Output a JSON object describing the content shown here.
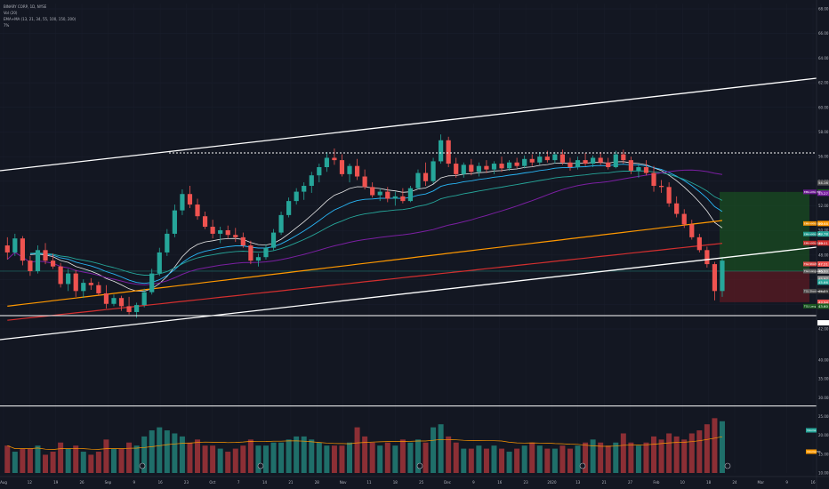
{
  "header": {
    "symbol_line": "BINARY CORP, 1D, NYSE",
    "vol_line": "Vol (20)",
    "ema_line": "EMA+MA (13, 21, 34, 55, 100, 150, 200)",
    "pct_line": "7%"
  },
  "colors": {
    "background": "#131722",
    "bull": "#26a69a",
    "bear": "#ef5350",
    "vol_bull": "#1f6f6a",
    "vol_bear": "#8c2f35",
    "ema13": "#e8e8e8",
    "ema21": "#29b6f6",
    "ema34": "#26a69a",
    "ma55": "#7b1fa2",
    "ma100": "#ff9800",
    "ma150": "#d32f2f",
    "trend": "#ffffff",
    "target_zone": "#1b5e20",
    "stop_zone": "#6d1b23"
  },
  "chart_data": {
    "type": "candlestick",
    "series_names": [
      "Price",
      "Volume"
    ],
    "x_axis": {
      "labels": [
        "Aug",
        "12",
        "19",
        "26",
        "Sep",
        "9",
        "16",
        "23",
        "Oct",
        "7",
        "14",
        "21",
        "28",
        "Nov",
        "11",
        "18",
        "25",
        "Dec",
        "9",
        "16",
        "23",
        "2020",
        "13",
        "21",
        "27",
        "Feb",
        "10",
        "18",
        "24",
        "Mar",
        "9",
        "16"
      ]
    },
    "price_axis": {
      "labels": [
        "68.00",
        "66.00",
        "64.00",
        "62.00",
        "60.00",
        "58.00",
        "56.00",
        "54.00",
        "52.00",
        "50.00",
        "48.00",
        "46.00",
        "44.00",
        "42.00"
      ],
      "ylim": [
        41.5,
        69.5
      ],
      "markers": [
        {
          "value": 54.16,
          "label": "54.16",
          "color": "#555"
        },
        {
          "value": 53.38,
          "label": "53.38",
          "color": "#1b5e20"
        },
        {
          "value": 53.27,
          "label": "53.27",
          "color": "#7b1fa2"
        },
        {
          "value": 50.68,
          "label": "50.68",
          "color": "#ff9800"
        },
        {
          "value": 49.78,
          "label": "49.78",
          "color": "#26a69a"
        },
        {
          "value": 49.01,
          "label": "49.01",
          "color": "#d32f2f"
        },
        {
          "value": 47.21,
          "label": "47.21",
          "color": "#ef5350"
        },
        {
          "value": 46.6,
          "label": "46.60",
          "color": "#888"
        },
        {
          "value": 45.97,
          "label": "45.97",
          "color": "#888"
        },
        {
          "value": 45.66,
          "label": "45.66",
          "color": "#26a69a"
        },
        {
          "value": 44.89,
          "label": "44.89",
          "color": "#333"
        },
        {
          "value": 43.94,
          "label": "43.94",
          "color": "#ef5350"
        },
        {
          "value": 43.6,
          "label": "43.60",
          "color": "#1b5e20"
        },
        {
          "value": 42.18,
          "label": "42.18",
          "color": "#ffffff"
        }
      ],
      "ma_tags": [
        {
          "value": 53.38,
          "label": "EMA+MA (55)",
          "color": "#7b1fa2"
        },
        {
          "value": 50.68,
          "label": "EMA+MA (100)",
          "color": "#ff9800"
        },
        {
          "value": 49.78,
          "label": "EMA+MA (34)",
          "color": "#26a69a"
        },
        {
          "value": 49.01,
          "label": "EMA+MA (150)",
          "color": "#d32f2f"
        },
        {
          "value": 47.21,
          "label": "TGL Short",
          "color": "#ef5350"
        },
        {
          "value": 46.6,
          "label": "TGL Long entry",
          "color": "#666"
        },
        {
          "value": 44.89,
          "label": "TGL Short entry",
          "color": "#555"
        },
        {
          "value": 43.6,
          "label": "TGL Long",
          "color": "#1b5e20"
        }
      ]
    },
    "volume_axis": {
      "labels": [
        "40.00M",
        "35.00M",
        "30.00M",
        "25.00M",
        "20.00M",
        "15.00M",
        "10.00M"
      ],
      "tags": [
        {
          "label": "Volume",
          "color": "#26a69a"
        },
        {
          "label": "Volume MA",
          "color": "#ff9800"
        }
      ]
    },
    "candles": [
      {
        "o": 48.8,
        "h": 49.5,
        "l": 47.6,
        "c": 48.2,
        "v": 9
      },
      {
        "o": 48.2,
        "h": 49.8,
        "l": 47.9,
        "c": 49.4,
        "v": 7
      },
      {
        "o": 49.4,
        "h": 49.6,
        "l": 47.1,
        "c": 47.5,
        "v": 8
      },
      {
        "o": 47.5,
        "h": 47.9,
        "l": 46.2,
        "c": 46.6,
        "v": 8
      },
      {
        "o": 46.6,
        "h": 48.8,
        "l": 46.4,
        "c": 48.4,
        "v": 9
      },
      {
        "o": 48.4,
        "h": 49.0,
        "l": 47.2,
        "c": 47.5,
        "v": 6
      },
      {
        "o": 47.5,
        "h": 48.1,
        "l": 46.8,
        "c": 47.0,
        "v": 7
      },
      {
        "o": 47.0,
        "h": 47.3,
        "l": 45.2,
        "c": 45.5,
        "v": 10
      },
      {
        "o": 45.5,
        "h": 46.8,
        "l": 44.9,
        "c": 46.4,
        "v": 8
      },
      {
        "o": 46.4,
        "h": 46.7,
        "l": 44.4,
        "c": 44.9,
        "v": 9
      },
      {
        "o": 44.9,
        "h": 45.9,
        "l": 44.3,
        "c": 45.6,
        "v": 7
      },
      {
        "o": 45.6,
        "h": 46.0,
        "l": 45.0,
        "c": 45.4,
        "v": 6
      },
      {
        "o": 45.4,
        "h": 45.7,
        "l": 44.5,
        "c": 44.7,
        "v": 7
      },
      {
        "o": 44.7,
        "h": 45.4,
        "l": 43.4,
        "c": 43.8,
        "v": 11
      },
      {
        "o": 43.8,
        "h": 44.6,
        "l": 43.6,
        "c": 44.3,
        "v": 8
      },
      {
        "o": 44.3,
        "h": 44.5,
        "l": 43.2,
        "c": 43.6,
        "v": 8
      },
      {
        "o": 43.6,
        "h": 44.4,
        "l": 42.9,
        "c": 43.1,
        "v": 10
      },
      {
        "o": 43.1,
        "h": 43.9,
        "l": 42.6,
        "c": 43.7,
        "v": 9
      },
      {
        "o": 43.7,
        "h": 45.1,
        "l": 43.5,
        "c": 44.8,
        "v": 12
      },
      {
        "o": 44.8,
        "h": 46.8,
        "l": 44.6,
        "c": 46.4,
        "v": 14
      },
      {
        "o": 46.4,
        "h": 48.6,
        "l": 46.2,
        "c": 48.2,
        "v": 15
      },
      {
        "o": 48.2,
        "h": 50.2,
        "l": 47.9,
        "c": 49.8,
        "v": 14
      },
      {
        "o": 49.8,
        "h": 52.3,
        "l": 49.5,
        "c": 51.8,
        "v": 13
      },
      {
        "o": 51.8,
        "h": 53.6,
        "l": 51.4,
        "c": 53.2,
        "v": 12
      },
      {
        "o": 53.2,
        "h": 53.9,
        "l": 52.0,
        "c": 52.3,
        "v": 10
      },
      {
        "o": 52.3,
        "h": 52.8,
        "l": 51.0,
        "c": 51.3,
        "v": 11
      },
      {
        "o": 51.3,
        "h": 51.7,
        "l": 50.2,
        "c": 50.4,
        "v": 9
      },
      {
        "o": 50.4,
        "h": 51.0,
        "l": 49.4,
        "c": 49.8,
        "v": 9
      },
      {
        "o": 49.8,
        "h": 50.4,
        "l": 49.0,
        "c": 50.1,
        "v": 8
      },
      {
        "o": 50.1,
        "h": 50.5,
        "l": 49.4,
        "c": 49.7,
        "v": 7
      },
      {
        "o": 49.7,
        "h": 50.3,
        "l": 49.1,
        "c": 49.5,
        "v": 8
      },
      {
        "o": 49.5,
        "h": 49.9,
        "l": 48.6,
        "c": 48.8,
        "v": 9
      },
      {
        "o": 48.8,
        "h": 49.2,
        "l": 47.2,
        "c": 47.5,
        "v": 11
      },
      {
        "o": 47.5,
        "h": 48.1,
        "l": 47.0,
        "c": 47.8,
        "v": 9
      },
      {
        "o": 47.8,
        "h": 48.9,
        "l": 47.6,
        "c": 48.6,
        "v": 9
      },
      {
        "o": 48.6,
        "h": 50.2,
        "l": 48.4,
        "c": 49.9,
        "v": 10
      },
      {
        "o": 49.9,
        "h": 51.7,
        "l": 49.7,
        "c": 51.4,
        "v": 10
      },
      {
        "o": 51.4,
        "h": 52.9,
        "l": 51.2,
        "c": 52.6,
        "v": 11
      },
      {
        "o": 52.6,
        "h": 53.7,
        "l": 52.3,
        "c": 53.4,
        "v": 12
      },
      {
        "o": 53.4,
        "h": 54.2,
        "l": 52.7,
        "c": 53.9,
        "v": 12
      },
      {
        "o": 53.9,
        "h": 55.1,
        "l": 53.3,
        "c": 54.8,
        "v": 11
      },
      {
        "o": 54.8,
        "h": 55.8,
        "l": 54.2,
        "c": 55.5,
        "v": 10
      },
      {
        "o": 55.5,
        "h": 56.8,
        "l": 55.1,
        "c": 56.3,
        "v": 9
      },
      {
        "o": 56.3,
        "h": 57.1,
        "l": 55.7,
        "c": 56.1,
        "v": 9
      },
      {
        "o": 56.1,
        "h": 56.6,
        "l": 54.7,
        "c": 54.9,
        "v": 9
      },
      {
        "o": 54.9,
        "h": 55.8,
        "l": 54.2,
        "c": 55.6,
        "v": 10
      },
      {
        "o": 55.6,
        "h": 56.2,
        "l": 54.4,
        "c": 54.7,
        "v": 15
      },
      {
        "o": 54.7,
        "h": 55.3,
        "l": 53.6,
        "c": 53.8,
        "v": 12
      },
      {
        "o": 53.8,
        "h": 54.2,
        "l": 52.9,
        "c": 53.1,
        "v": 10
      },
      {
        "o": 53.1,
        "h": 53.7,
        "l": 52.6,
        "c": 53.4,
        "v": 9
      },
      {
        "o": 53.4,
        "h": 53.8,
        "l": 52.5,
        "c": 52.8,
        "v": 10
      },
      {
        "o": 52.8,
        "h": 53.4,
        "l": 52.2,
        "c": 53.0,
        "v": 9
      },
      {
        "o": 53.0,
        "h": 53.7,
        "l": 52.4,
        "c": 52.6,
        "v": 11
      },
      {
        "o": 52.6,
        "h": 53.9,
        "l": 52.5,
        "c": 53.7,
        "v": 10
      },
      {
        "o": 53.7,
        "h": 55.3,
        "l": 53.6,
        "c": 55.0,
        "v": 11
      },
      {
        "o": 55.0,
        "h": 55.9,
        "l": 53.9,
        "c": 54.3,
        "v": 10
      },
      {
        "o": 54.3,
        "h": 56.3,
        "l": 54.1,
        "c": 56.0,
        "v": 15
      },
      {
        "o": 56.0,
        "h": 58.3,
        "l": 55.8,
        "c": 57.8,
        "v": 16
      },
      {
        "o": 57.8,
        "h": 58.1,
        "l": 55.5,
        "c": 55.8,
        "v": 12
      },
      {
        "o": 55.8,
        "h": 56.3,
        "l": 54.6,
        "c": 54.9,
        "v": 10
      },
      {
        "o": 54.9,
        "h": 55.9,
        "l": 54.6,
        "c": 55.7,
        "v": 8
      },
      {
        "o": 55.7,
        "h": 56.2,
        "l": 54.8,
        "c": 55.1,
        "v": 8
      },
      {
        "o": 55.1,
        "h": 55.9,
        "l": 54.7,
        "c": 55.6,
        "v": 9
      },
      {
        "o": 55.6,
        "h": 56.1,
        "l": 55.0,
        "c": 55.3,
        "v": 8
      },
      {
        "o": 55.3,
        "h": 56.0,
        "l": 54.9,
        "c": 55.8,
        "v": 9
      },
      {
        "o": 55.8,
        "h": 56.4,
        "l": 55.1,
        "c": 55.4,
        "v": 8
      },
      {
        "o": 55.4,
        "h": 56.1,
        "l": 55.2,
        "c": 55.9,
        "v": 7
      },
      {
        "o": 55.9,
        "h": 56.3,
        "l": 55.4,
        "c": 55.6,
        "v": 8
      },
      {
        "o": 55.6,
        "h": 56.5,
        "l": 55.4,
        "c": 56.2,
        "v": 9
      },
      {
        "o": 56.2,
        "h": 56.6,
        "l": 55.6,
        "c": 55.9,
        "v": 10
      },
      {
        "o": 55.9,
        "h": 56.8,
        "l": 55.7,
        "c": 56.4,
        "v": 9
      },
      {
        "o": 56.4,
        "h": 56.9,
        "l": 55.9,
        "c": 56.1,
        "v": 8
      },
      {
        "o": 56.1,
        "h": 56.8,
        "l": 55.8,
        "c": 56.6,
        "v": 8
      },
      {
        "o": 56.6,
        "h": 57.0,
        "l": 55.7,
        "c": 55.9,
        "v": 9
      },
      {
        "o": 55.9,
        "h": 56.3,
        "l": 55.2,
        "c": 55.5,
        "v": 8
      },
      {
        "o": 55.5,
        "h": 56.4,
        "l": 55.3,
        "c": 56.1,
        "v": 9
      },
      {
        "o": 56.1,
        "h": 56.7,
        "l": 55.6,
        "c": 55.8,
        "v": 10
      },
      {
        "o": 55.8,
        "h": 56.5,
        "l": 55.5,
        "c": 56.3,
        "v": 11
      },
      {
        "o": 56.3,
        "h": 56.8,
        "l": 55.7,
        "c": 55.9,
        "v": 10
      },
      {
        "o": 55.9,
        "h": 56.3,
        "l": 55.3,
        "c": 55.5,
        "v": 9
      },
      {
        "o": 55.5,
        "h": 56.9,
        "l": 55.4,
        "c": 56.6,
        "v": 10
      },
      {
        "o": 56.6,
        "h": 57.0,
        "l": 55.8,
        "c": 56.1,
        "v": 13
      },
      {
        "o": 56.1,
        "h": 56.4,
        "l": 54.9,
        "c": 55.2,
        "v": 10
      },
      {
        "o": 55.2,
        "h": 55.8,
        "l": 54.6,
        "c": 55.5,
        "v": 9
      },
      {
        "o": 55.5,
        "h": 56.1,
        "l": 54.8,
        "c": 55.0,
        "v": 10
      },
      {
        "o": 55.0,
        "h": 55.6,
        "l": 53.4,
        "c": 53.9,
        "v": 12
      },
      {
        "o": 53.9,
        "h": 54.4,
        "l": 53.3,
        "c": 53.8,
        "v": 11
      },
      {
        "o": 53.8,
        "h": 54.2,
        "l": 52.1,
        "c": 52.4,
        "v": 13
      },
      {
        "o": 52.4,
        "h": 53.0,
        "l": 51.2,
        "c": 51.5,
        "v": 12
      },
      {
        "o": 51.5,
        "h": 51.9,
        "l": 50.3,
        "c": 50.6,
        "v": 11
      },
      {
        "o": 50.6,
        "h": 51.0,
        "l": 49.3,
        "c": 49.5,
        "v": 13
      },
      {
        "o": 49.5,
        "h": 49.8,
        "l": 48.2,
        "c": 48.4,
        "v": 14
      },
      {
        "o": 48.4,
        "h": 48.7,
        "l": 46.9,
        "c": 47.2,
        "v": 16
      },
      {
        "o": 47.2,
        "h": 47.4,
        "l": 44.1,
        "c": 44.9,
        "v": 18
      },
      {
        "o": 44.9,
        "h": 47.8,
        "l": 44.4,
        "c": 47.5,
        "v": 17
      }
    ]
  }
}
